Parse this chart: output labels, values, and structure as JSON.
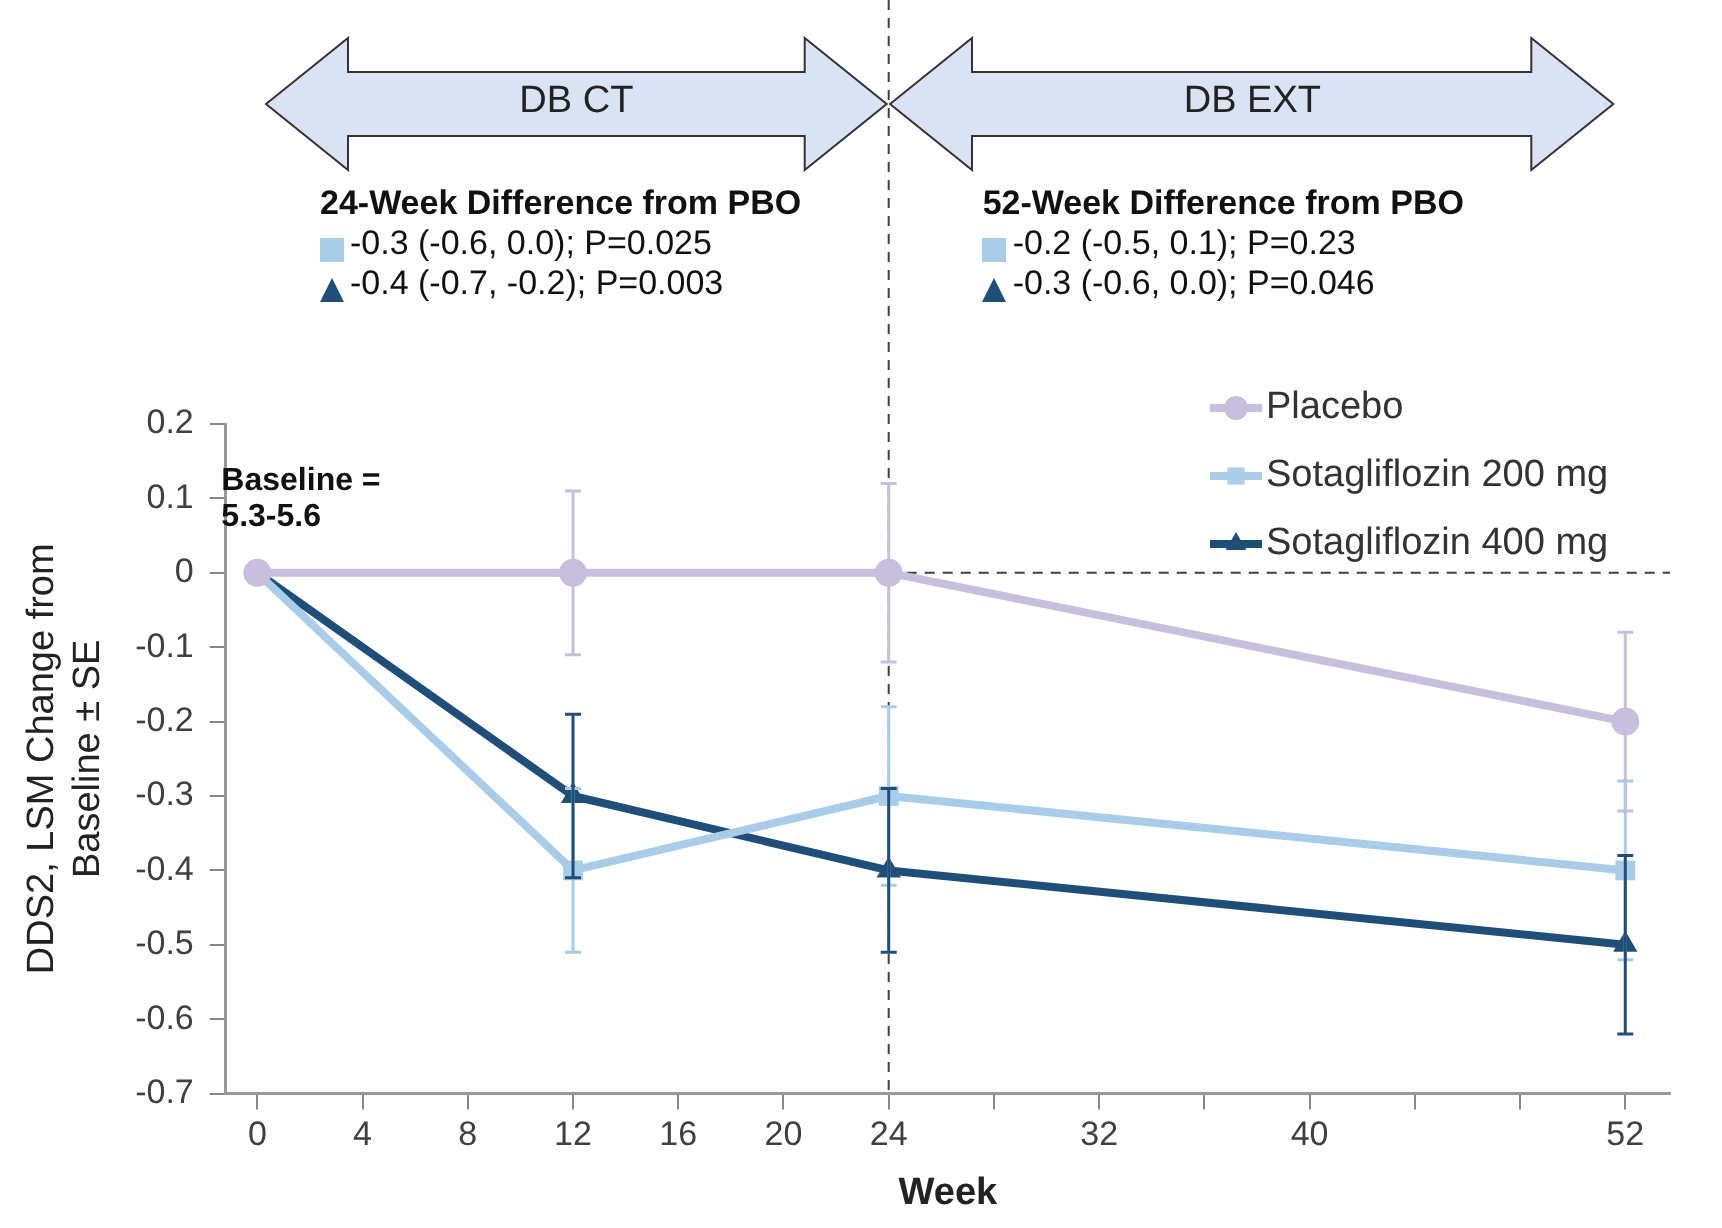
{
  "chart_data": {
    "type": "line",
    "xlabel": "Week",
    "ylabel": "DDS2, LSM Change from Baseline ± SE",
    "x": [
      0,
      12,
      24,
      52
    ],
    "xlim": [
      -1.2,
      53.7
    ],
    "xticks": [
      0,
      4,
      8,
      12,
      16,
      20,
      24,
      {
        "value": 28,
        "label": null
      },
      32,
      {
        "value": 36,
        "label": null
      },
      40,
      {
        "value": 44,
        "label": null
      },
      {
        "value": 48,
        "label": null
      },
      52
    ],
    "ylim": [
      -0.7,
      0.2
    ],
    "yticks": [
      -0.7,
      -0.6,
      -0.5,
      -0.4,
      -0.3,
      -0.2,
      -0.1,
      0,
      0.1,
      0.2
    ],
    "grid": false,
    "legend": "top right",
    "series": [
      {
        "name": "Placebo",
        "color": "#c8bedd",
        "marker": "circle",
        "values": [
          0,
          0,
          0,
          -0.2
        ],
        "errors": [
          null,
          0.11,
          0.12,
          0.12
        ]
      },
      {
        "name": "Sotagliflozin 200 mg",
        "color": "#a9cde9",
        "marker": "square",
        "values": [
          0,
          -0.4,
          -0.3,
          -0.4
        ],
        "errors": [
          null,
          0.11,
          0.12,
          0.12
        ]
      },
      {
        "name": "Sotagliflozin 400 mg",
        "color": "#1f4e79",
        "marker": "triangle",
        "values": [
          0,
          -0.3,
          -0.4,
          -0.5
        ],
        "errors": [
          null,
          0.11,
          0.11,
          0.12
        ]
      }
    ],
    "ref_lines": [
      {
        "axis": "x",
        "value": 24,
        "color": "#404040",
        "line_style": "dashed"
      },
      {
        "axis": "y",
        "value": 0,
        "color": "#404040",
        "line_style": "dashed"
      }
    ],
    "annotations": [
      "DB CT",
      "DB EXT",
      "24-Week Difference from PBO",
      "-0.3 (-0.6, 0.0); P=0.025",
      "-0.4 (-0.7, -0.2); P=0.003",
      "52-Week Difference from PBO",
      "-0.2 (-0.5, 0.1); P=0.23",
      "-0.3 (-0.6, 0.0); P=0.046",
      "Baseline = 5.3-5.6"
    ]
  }
}
